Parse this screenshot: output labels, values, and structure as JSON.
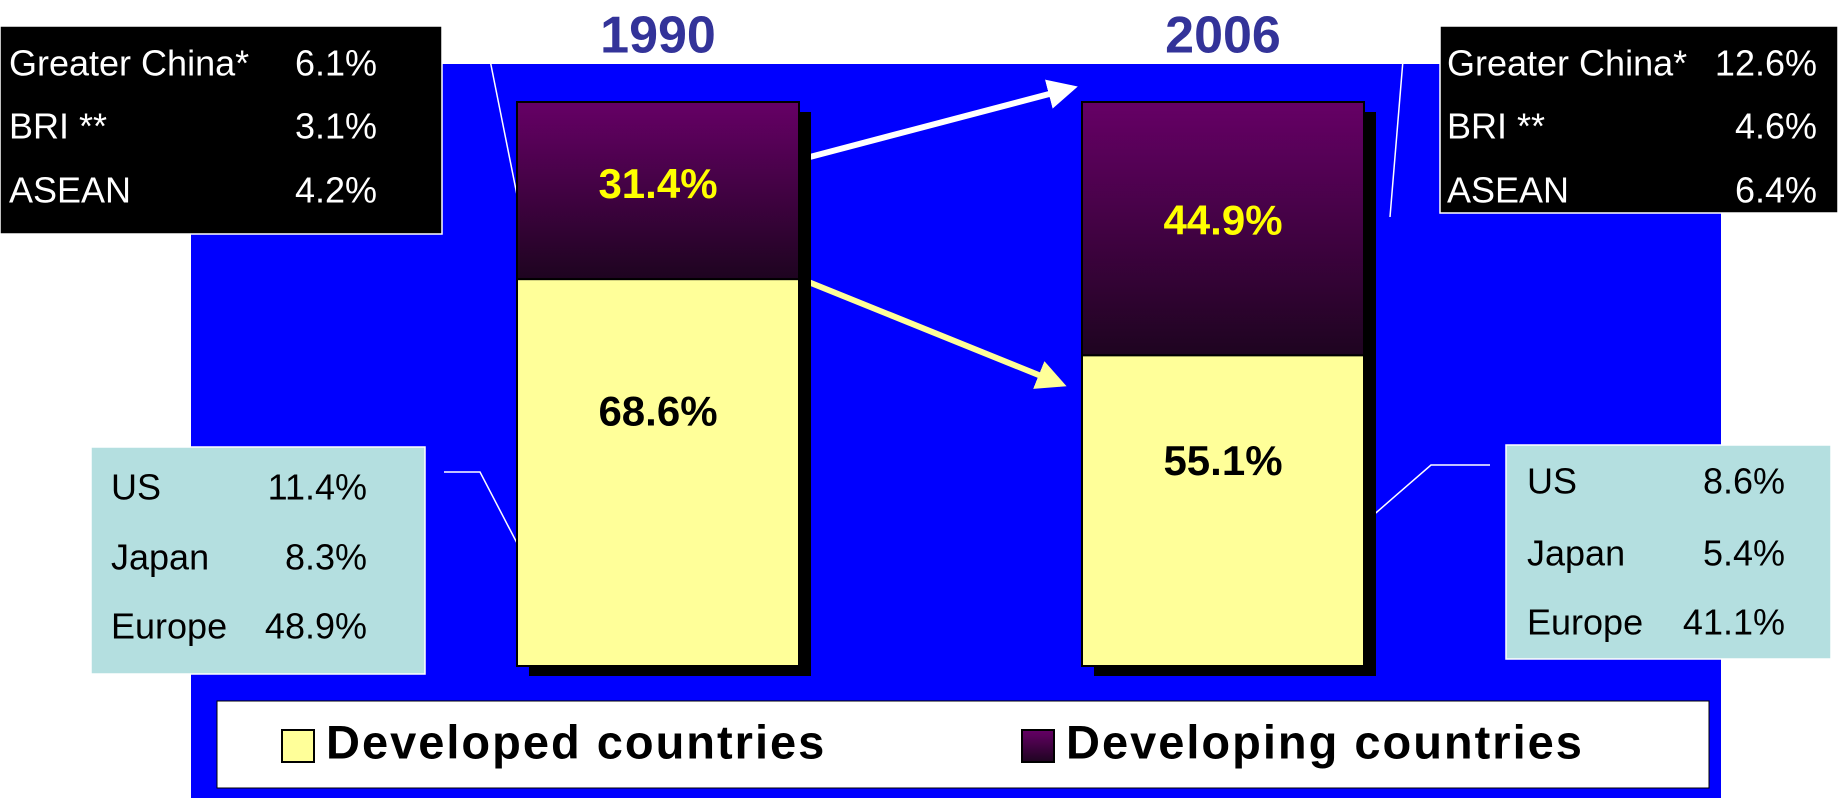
{
  "chart_data": {
    "type": "bar",
    "stacked": true,
    "categories": [
      "1990",
      "2006"
    ],
    "series": [
      {
        "name": "Developed countries",
        "color": "#ffff99",
        "values": [
          68.6,
          55.1
        ],
        "value_labels": [
          "68.6%",
          "55.1%"
        ]
      },
      {
        "name": "Developing countries",
        "color": "#660066",
        "values": [
          31.4,
          44.9
        ],
        "value_labels": [
          "31.4%",
          "44.9%"
        ]
      }
    ],
    "annotations": [
      {
        "rows": [
          {
            "label": "Greater China*",
            "value": "6.1%"
          },
          {
            "label": "BRI **",
            "value": "3.1%"
          },
          {
            "label": "ASEAN",
            "value": "4.2%"
          }
        ]
      },
      {
        "rows": [
          {
            "label": "Greater China*",
            "value": "12.6%"
          },
          {
            "label": "BRI **",
            "value": "4.6%"
          },
          {
            "label": "ASEAN",
            "value": "6.4%"
          }
        ]
      },
      {
        "rows": [
          {
            "label": "US",
            "value": "11.4%"
          },
          {
            "label": "Japan",
            "value": "8.3%"
          },
          {
            "label": "Europe",
            "value": "48.9%"
          }
        ]
      },
      {
        "rows": [
          {
            "label": "US",
            "value": "8.6%"
          },
          {
            "label": "Japan",
            "value": "5.4%"
          },
          {
            "label": "Europe",
            "value": "41.1%"
          }
        ]
      }
    ]
  }
}
